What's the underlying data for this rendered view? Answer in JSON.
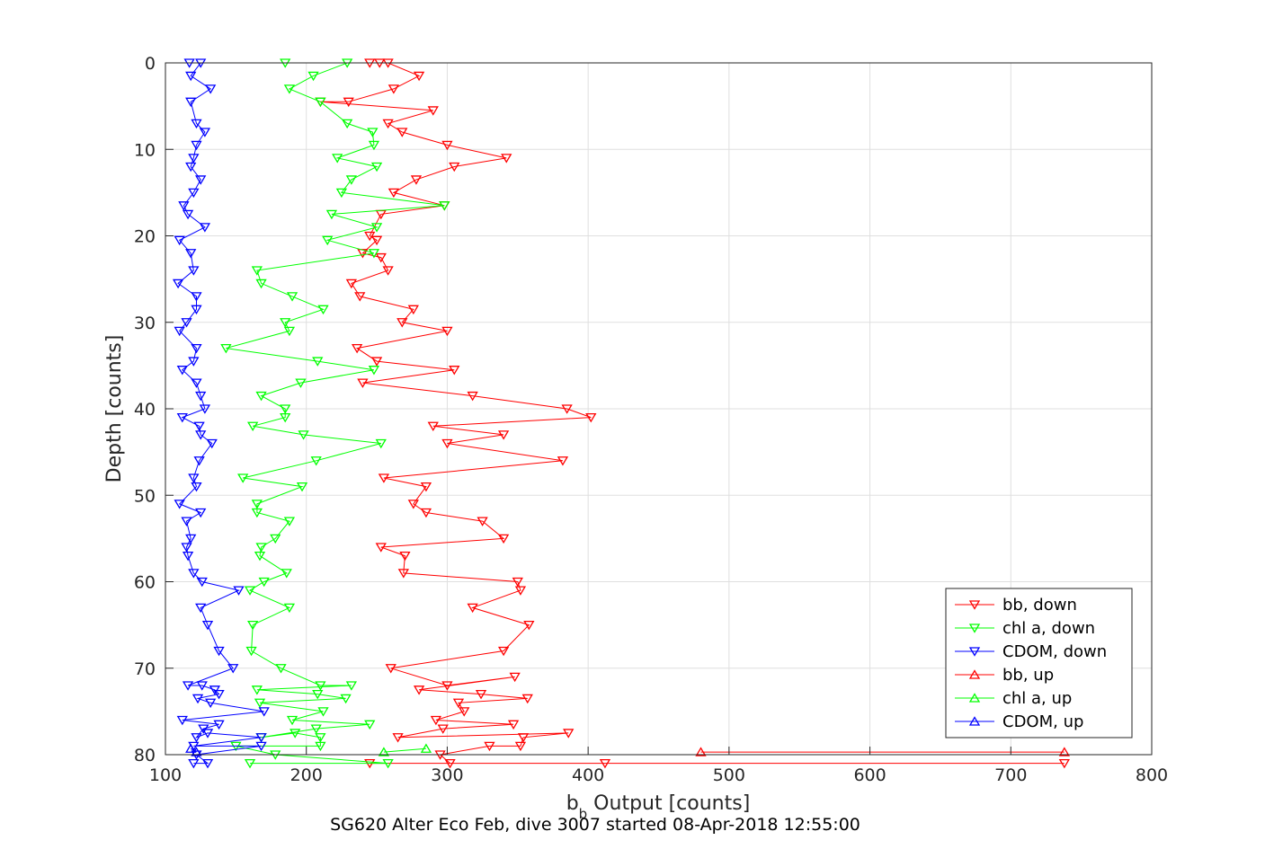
{
  "chart_data": {
    "type": "line",
    "xlabel_main": "b",
    "xlabel_sub": "b",
    "xlabel_rest": " Output [counts]",
    "ylabel": "Depth [counts]",
    "caption": "SG620 Alter Eco Feb, dive 3007 started 08-Apr-2018 12:55:00",
    "xlim": [
      100,
      800
    ],
    "ylim": [
      0,
      80
    ],
    "y_reversed": true,
    "grid": true,
    "legend_position": "bottom-right",
    "x_ticks": [
      "100",
      "200",
      "300",
      "400",
      "500",
      "600",
      "700",
      "800"
    ],
    "y_ticks": [
      "0",
      "10",
      "20",
      "30",
      "40",
      "50",
      "60",
      "70",
      "80"
    ],
    "series": [
      {
        "name": "bb, down",
        "color": "#ff0000",
        "marker": "triangle-down",
        "points": [
          [
            245,
            0
          ],
          [
            252,
            0
          ],
          [
            258,
            0
          ],
          [
            280,
            1.5
          ],
          [
            262,
            3
          ],
          [
            230,
            4.5
          ],
          [
            210,
            4.5
          ],
          [
            290,
            5.5
          ],
          [
            258,
            7
          ],
          [
            268,
            8
          ],
          [
            300,
            9.5
          ],
          [
            342,
            11
          ],
          [
            305,
            12
          ],
          [
            278,
            13.5
          ],
          [
            262,
            15
          ],
          [
            298,
            16.5
          ],
          [
            253,
            17.5
          ],
          [
            245,
            20
          ],
          [
            250,
            20.5
          ],
          [
            240,
            22
          ],
          [
            253,
            22.5
          ],
          [
            258,
            24
          ],
          [
            232,
            25.5
          ],
          [
            238,
            27
          ],
          [
            276,
            28.5
          ],
          [
            268,
            30
          ],
          [
            300,
            31
          ],
          [
            236,
            33
          ],
          [
            250,
            34.5
          ],
          [
            305,
            35.5
          ],
          [
            240,
            37
          ],
          [
            318,
            38.5
          ],
          [
            385,
            40
          ],
          [
            402,
            41
          ],
          [
            290,
            42
          ],
          [
            340,
            43
          ],
          [
            300,
            44
          ],
          [
            382,
            46
          ],
          [
            255,
            48
          ],
          [
            285,
            49
          ],
          [
            276,
            51
          ],
          [
            285,
            52
          ],
          [
            325,
            53
          ],
          [
            340,
            55
          ],
          [
            253,
            56
          ],
          [
            270,
            57
          ],
          [
            269,
            59
          ],
          [
            350,
            60
          ],
          [
            352,
            61
          ],
          [
            318,
            63
          ],
          [
            358,
            65
          ],
          [
            340,
            68
          ],
          [
            260,
            70
          ],
          [
            300,
            72
          ],
          [
            348,
            71
          ],
          [
            280,
            72.5
          ],
          [
            324,
            73
          ],
          [
            357,
            73.5
          ],
          [
            308,
            74
          ],
          [
            312,
            75
          ],
          [
            292,
            76
          ],
          [
            347,
            76.5
          ],
          [
            297,
            77
          ],
          [
            265,
            78
          ],
          [
            386,
            77.5
          ],
          [
            354,
            78
          ],
          [
            352,
            79
          ],
          [
            330,
            79
          ],
          [
            295,
            80
          ],
          [
            302,
            81
          ],
          [
            245,
            81
          ],
          [
            412,
            81
          ],
          [
            738,
            81
          ]
        ]
      },
      {
        "name": "chl a, down",
        "color": "#00ff00",
        "marker": "triangle-down",
        "points": [
          [
            185,
            0
          ],
          [
            229,
            0
          ],
          [
            205,
            1.5
          ],
          [
            188,
            3
          ],
          [
            210,
            4.5
          ],
          [
            229,
            7
          ],
          [
            247,
            8
          ],
          [
            248,
            9.5
          ],
          [
            222,
            11
          ],
          [
            250,
            12
          ],
          [
            232,
            13.5
          ],
          [
            225,
            15
          ],
          [
            298,
            16.5
          ],
          [
            218,
            17.5
          ],
          [
            250,
            19
          ],
          [
            215,
            20.5
          ],
          [
            248,
            22
          ],
          [
            165,
            24
          ],
          [
            168,
            25.5
          ],
          [
            190,
            27
          ],
          [
            212,
            28.5
          ],
          [
            185,
            30
          ],
          [
            188,
            31
          ],
          [
            143,
            33
          ],
          [
            208,
            34.5
          ],
          [
            248,
            35.5
          ],
          [
            196,
            37
          ],
          [
            168,
            38.5
          ],
          [
            185,
            40
          ],
          [
            185,
            41
          ],
          [
            162,
            42
          ],
          [
            198,
            43
          ],
          [
            253,
            44
          ],
          [
            207,
            46
          ],
          [
            155,
            48
          ],
          [
            197,
            49
          ],
          [
            165,
            51
          ],
          [
            165,
            52
          ],
          [
            188,
            53
          ],
          [
            178,
            55
          ],
          [
            168,
            56
          ],
          [
            167,
            57
          ],
          [
            186,
            59
          ],
          [
            170,
            60
          ],
          [
            160,
            61
          ],
          [
            188,
            63
          ],
          [
            162,
            65
          ],
          [
            161,
            68
          ],
          [
            182,
            70
          ],
          [
            210,
            72
          ],
          [
            232,
            72
          ],
          [
            165,
            72.5
          ],
          [
            208,
            73
          ],
          [
            228,
            73.5
          ],
          [
            167,
            74
          ],
          [
            212,
            75
          ],
          [
            190,
            76
          ],
          [
            245,
            76.5
          ],
          [
            207,
            77
          ],
          [
            168,
            78
          ],
          [
            192,
            77.5
          ],
          [
            210,
            78
          ],
          [
            210,
            79
          ],
          [
            150,
            79
          ],
          [
            178,
            80
          ],
          [
            258,
            81
          ],
          [
            160,
            81
          ]
        ]
      },
      {
        "name": "CDOM, down",
        "color": "#0000ff",
        "marker": "triangle-down",
        "points": [
          [
            117,
            0
          ],
          [
            125,
            0
          ],
          [
            118,
            1.5
          ],
          [
            132,
            3
          ],
          [
            118,
            4.5
          ],
          [
            122,
            7
          ],
          [
            128,
            8
          ],
          [
            122,
            9.5
          ],
          [
            120,
            11
          ],
          [
            118,
            12
          ],
          [
            125,
            13.5
          ],
          [
            120,
            15
          ],
          [
            113,
            16.5
          ],
          [
            116,
            17.5
          ],
          [
            128,
            19
          ],
          [
            110,
            20.5
          ],
          [
            118,
            22
          ],
          [
            120,
            24
          ],
          [
            109,
            25.5
          ],
          [
            122,
            27
          ],
          [
            122,
            28.5
          ],
          [
            115,
            30
          ],
          [
            110,
            31
          ],
          [
            122,
            33
          ],
          [
            120,
            34.5
          ],
          [
            112,
            35.5
          ],
          [
            122,
            37
          ],
          [
            125,
            38.5
          ],
          [
            128,
            40
          ],
          [
            112,
            41
          ],
          [
            124,
            42
          ],
          [
            125,
            43
          ],
          [
            133,
            44
          ],
          [
            124,
            46
          ],
          [
            120,
            48
          ],
          [
            122,
            49
          ],
          [
            110,
            51
          ],
          [
            125,
            52
          ],
          [
            115,
            53
          ],
          [
            118,
            55
          ],
          [
            115,
            56
          ],
          [
            116,
            57
          ],
          [
            120,
            59
          ],
          [
            126,
            60
          ],
          [
            152,
            61
          ],
          [
            125,
            63
          ],
          [
            130,
            65
          ],
          [
            138,
            68
          ],
          [
            148,
            70
          ],
          [
            116,
            72
          ],
          [
            126,
            72
          ],
          [
            135,
            72.5
          ],
          [
            138,
            73
          ],
          [
            123,
            73.5
          ],
          [
            132,
            74
          ],
          [
            170,
            75
          ],
          [
            112,
            76
          ],
          [
            138,
            76.5
          ],
          [
            127,
            77
          ],
          [
            122,
            78
          ],
          [
            130,
            77.5
          ],
          [
            168,
            78
          ],
          [
            120,
            79
          ],
          [
            168,
            79
          ],
          [
            122,
            80
          ],
          [
            130,
            81
          ],
          [
            120,
            81
          ]
        ]
      },
      {
        "name": "bb, up",
        "color": "#ff0000",
        "marker": "triangle-up",
        "points": [
          [
            738,
            79.7
          ],
          [
            480,
            79.7
          ]
        ]
      },
      {
        "name": "chl a, up",
        "color": "#00ff00",
        "marker": "triangle-up",
        "points": [
          [
            255,
            79.7
          ],
          [
            285,
            79.3
          ]
        ]
      },
      {
        "name": "CDOM, up",
        "color": "#0000ff",
        "marker": "triangle-up",
        "points": [
          [
            122,
            79.7
          ],
          [
            118,
            79.3
          ]
        ]
      }
    ]
  }
}
